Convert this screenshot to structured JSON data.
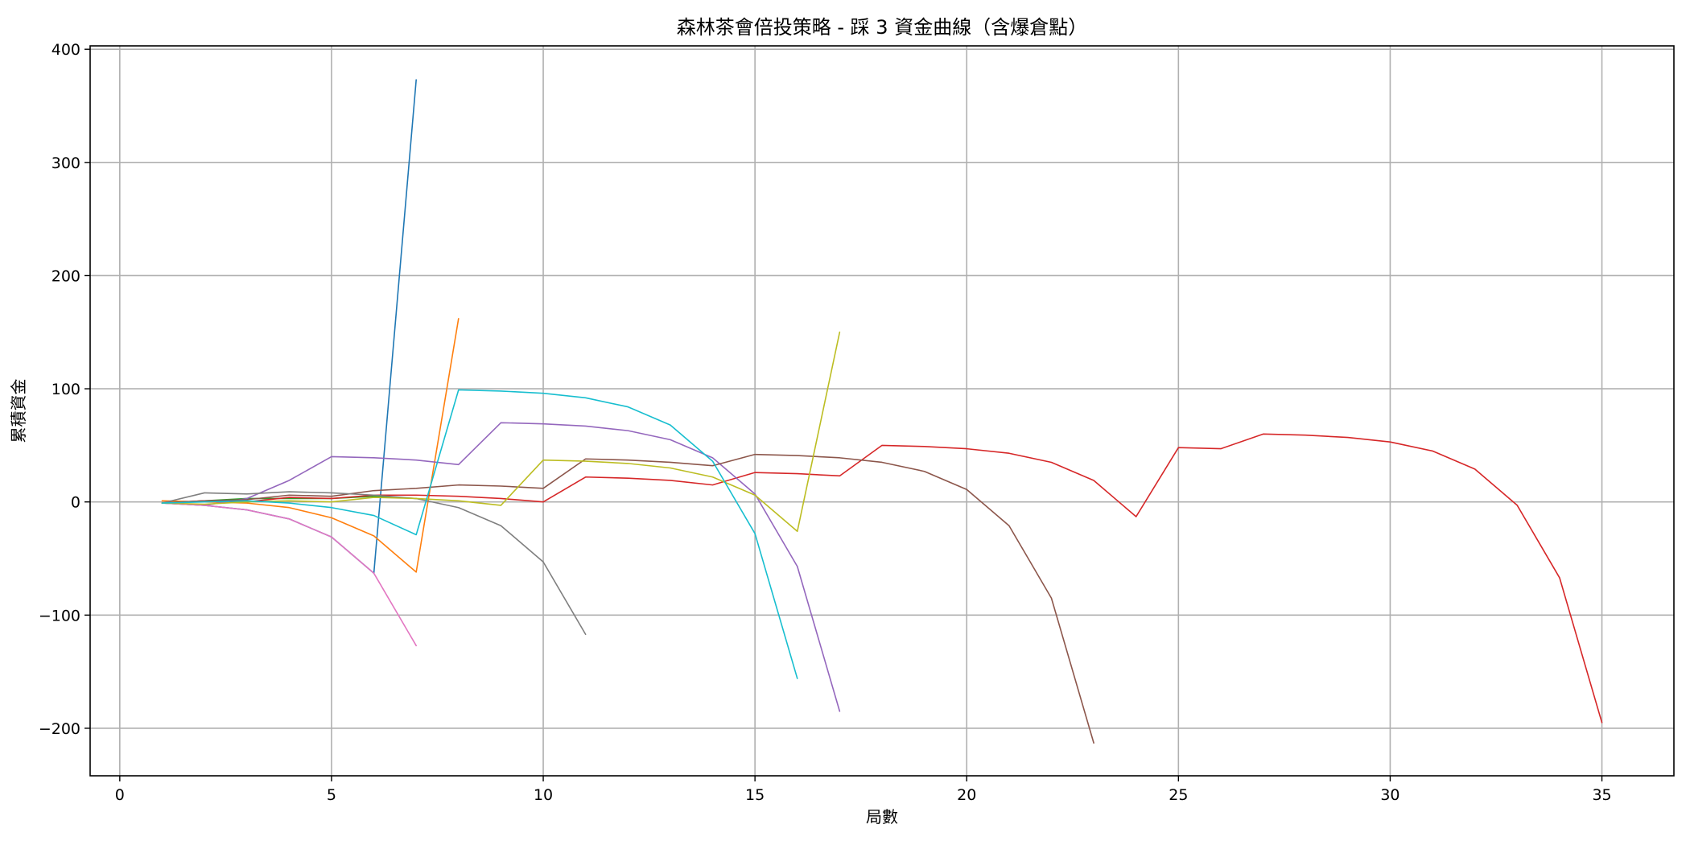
{
  "chart_data": {
    "type": "line",
    "title": "森林茶會倍投策略 - 踩 3 資金曲線（含爆倉點）",
    "xlabel": "局數",
    "ylabel": "累積資金",
    "xlim": [
      -0.7,
      36.7
    ],
    "ylim": [
      -242,
      403
    ],
    "x_ticks": [
      0,
      5,
      10,
      15,
      20,
      25,
      30,
      35
    ],
    "y_ticks": [
      -200,
      -100,
      0,
      100,
      200,
      300,
      400
    ],
    "x_tick_labels": [
      "0",
      "5",
      "10",
      "15",
      "20",
      "25",
      "30",
      "35"
    ],
    "y_tick_labels": [
      "−200",
      "−100",
      "0",
      "100",
      "200",
      "300",
      "400"
    ],
    "grid": true,
    "legend": "none",
    "series": [
      {
        "color": "#1f77b4",
        "x": [
          1,
          2,
          3,
          4,
          5,
          6,
          7
        ],
        "y": [
          -1,
          -3,
          -7,
          -15,
          -31,
          -63,
          373
        ]
      },
      {
        "color": "#ff7f0e",
        "x": [
          1,
          2,
          3,
          4,
          5,
          6,
          7,
          8
        ],
        "y": [
          1,
          0,
          -1,
          -5,
          -14,
          -30,
          -62,
          162
        ]
      },
      {
        "color": "#2ca02c",
        "x": [
          1,
          2,
          3,
          4,
          5,
          6,
          7
        ],
        "y": [
          -1,
          1,
          3,
          3,
          3,
          5,
          3
        ]
      },
      {
        "color": "#d62728",
        "x": [
          1,
          2,
          3,
          4,
          5,
          6,
          7,
          8,
          9,
          10,
          11,
          12,
          13,
          14,
          15,
          16,
          17,
          18,
          19,
          20,
          21,
          22,
          23,
          24,
          25,
          26,
          27,
          28,
          29,
          30,
          31,
          32,
          33,
          34,
          35
        ],
        "y": [
          -1,
          1,
          0,
          4,
          3,
          6,
          6,
          5,
          3,
          0,
          22,
          21,
          19,
          15,
          26,
          25,
          23,
          50,
          49,
          47,
          43,
          35,
          19,
          -13,
          48,
          47,
          60,
          59,
          57,
          53,
          45,
          29,
          -3,
          -67,
          -195
        ]
      },
      {
        "color": "#9467bd",
        "x": [
          1,
          2,
          3,
          4,
          5,
          6,
          7,
          8,
          9,
          10,
          11,
          12,
          13,
          14,
          15,
          16,
          17
        ],
        "y": [
          -1,
          -3,
          3,
          19,
          40,
          39,
          37,
          33,
          70,
          69,
          67,
          63,
          55,
          39,
          7,
          -57,
          -185
        ]
      },
      {
        "color": "#8c564b",
        "x": [
          1,
          2,
          3,
          4,
          5,
          6,
          7,
          8,
          9,
          10,
          11,
          12,
          13,
          14,
          15,
          16,
          17,
          18,
          19,
          20,
          21,
          22,
          23
        ],
        "y": [
          -1,
          1,
          2,
          6,
          5,
          10,
          12,
          15,
          14,
          12,
          38,
          37,
          35,
          32,
          42,
          41,
          39,
          35,
          27,
          11,
          -21,
          -85,
          -213
        ]
      },
      {
        "color": "#e377c2",
        "x": [
          1,
          2,
          3,
          4,
          5,
          6,
          7
        ],
        "y": [
          -1,
          -3,
          -7,
          -15,
          -31,
          -63,
          -127
        ]
      },
      {
        "color": "#7f7f7f",
        "x": [
          1,
          2,
          3,
          4,
          5,
          6,
          7,
          8,
          9,
          10,
          11
        ],
        "y": [
          -1,
          8,
          7,
          9,
          8,
          6,
          3,
          -5,
          -21,
          -53,
          -117
        ]
      },
      {
        "color": "#bcbd22",
        "x": [
          1,
          2,
          3,
          4,
          5,
          6,
          7,
          8,
          9,
          10,
          11,
          12,
          13,
          14,
          15,
          16,
          17
        ],
        "y": [
          -1,
          -2,
          0,
          1,
          0,
          4,
          3,
          1,
          -3,
          37,
          36,
          34,
          30,
          22,
          6,
          -26,
          150
        ]
      },
      {
        "color": "#17becf",
        "x": [
          1,
          2,
          3,
          4,
          5,
          6,
          7,
          8,
          9,
          10,
          11,
          12,
          13,
          14,
          15,
          16
        ],
        "y": [
          -1,
          0,
          1,
          -1,
          -5,
          -12,
          -29,
          99,
          98,
          96,
          92,
          84,
          68,
          36,
          -28,
          -156
        ]
      }
    ]
  }
}
